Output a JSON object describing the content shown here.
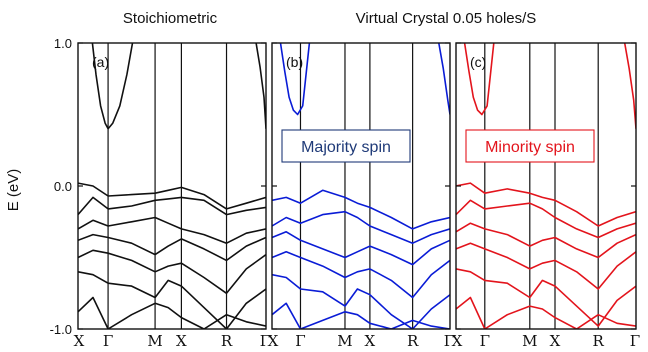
{
  "chart_data": {
    "type": "line",
    "ylabel": "E (eV)",
    "ylim": [
      -1.0,
      1.0
    ],
    "yticks": [
      "-1.0",
      "0.0",
      "1.0"
    ],
    "x_high_symmetry": [
      "X",
      "Γ",
      "M",
      "X",
      "R",
      "Γ"
    ],
    "titles": {
      "left": "Stoichiometric",
      "right": "Virtual Crystal 0.05 holes/S"
    },
    "panels": [
      {
        "label": "(a)",
        "color": "#111111",
        "annotation": "",
        "series": [
          {
            "x": [
              0.48,
              0.6,
              0.75,
              0.9,
              1.0,
              1.1,
              1.25,
              1.4,
              1.52
            ],
            "y": [
              1.0,
              0.78,
              0.56,
              0.44,
              0.4,
              0.44,
              0.56,
              0.78,
              1.0
            ]
          },
          {
            "x": [
              4.75,
              4.85,
              4.95,
              5.0
            ],
            "y": [
              1.0,
              0.83,
              0.62,
              0.4
            ]
          },
          {
            "x": [
              0,
              0.5,
              1.0,
              1.5,
              2.0,
              2.5,
              3.0,
              3.5,
              4.0,
              4.5,
              5.0
            ],
            "y": [
              0.02,
              0.0,
              -0.07,
              -0.06,
              -0.05,
              -0.03,
              -0.01,
              -0.06,
              -0.16,
              -0.12,
              -0.08
            ]
          },
          {
            "x": [
              0,
              0.5,
              1.0,
              1.5,
              2.0,
              2.5,
              3.0,
              3.5,
              4.0,
              4.5,
              5.0
            ],
            "y": [
              -0.2,
              -0.08,
              -0.16,
              -0.14,
              -0.1,
              -0.09,
              -0.08,
              -0.1,
              -0.2,
              -0.17,
              -0.15
            ]
          },
          {
            "x": [
              0,
              0.5,
              1.0,
              1.5,
              2.0,
              2.5,
              3.0,
              3.5,
              4.0,
              4.5,
              5.0
            ],
            "y": [
              -0.3,
              -0.24,
              -0.28,
              -0.25,
              -0.22,
              -0.26,
              -0.3,
              -0.34,
              -0.4,
              -0.33,
              -0.3
            ]
          },
          {
            "x": [
              0,
              0.5,
              1.0,
              1.5,
              2.0,
              2.5,
              3.0,
              3.5,
              4.0,
              4.5,
              5.0
            ],
            "y": [
              -0.38,
              -0.34,
              -0.36,
              -0.4,
              -0.48,
              -0.42,
              -0.37,
              -0.44,
              -0.52,
              -0.42,
              -0.36
            ]
          },
          {
            "x": [
              0,
              0.5,
              1.0,
              1.5,
              2.0,
              2.5,
              3.0,
              3.5,
              4.0,
              4.5,
              5.0
            ],
            "y": [
              -0.5,
              -0.45,
              -0.47,
              -0.52,
              -0.6,
              -0.56,
              -0.54,
              -0.64,
              -0.75,
              -0.58,
              -0.48
            ]
          },
          {
            "x": [
              0,
              0.5,
              1.0,
              1.5,
              2.0,
              2.5,
              3.0,
              3.5,
              4.0,
              4.5,
              5.0
            ],
            "y": [
              -0.6,
              -0.62,
              -0.68,
              -0.7,
              -0.78,
              -0.66,
              -0.7,
              -0.85,
              -1.0,
              -0.82,
              -0.72
            ]
          },
          {
            "x": [
              0,
              0.5,
              1.0,
              1.5,
              2.0,
              2.5,
              3.0,
              3.5,
              4.0,
              4.5,
              5.0
            ],
            "y": [
              -0.88,
              -0.78,
              -1.0,
              -0.9,
              -0.82,
              -0.85,
              -0.92,
              -1.0,
              -0.9,
              -0.95,
              -0.98
            ]
          }
        ]
      },
      {
        "label": "(b)",
        "color": "#0a1cd6",
        "annotation": "Majority spin",
        "annotation_color": "#1f3a78",
        "series": [
          {
            "x": [
              0.3,
              0.45,
              0.6,
              0.75,
              0.9,
              1.05,
              1.2
            ],
            "y": [
              1.0,
              0.8,
              0.62,
              0.53,
              0.5,
              0.56,
              1.0
            ]
          },
          {
            "x": [
              4.7,
              4.82,
              4.94,
              5.0
            ],
            "y": [
              1.0,
              0.82,
              0.6,
              0.5
            ]
          },
          {
            "x": [
              0,
              0.5,
              1.0,
              1.5,
              2.0,
              2.5,
              3.0,
              3.5,
              4.0,
              4.5,
              5.0
            ],
            "y": [
              -0.1,
              -0.08,
              -0.12,
              -0.03,
              -0.08,
              -0.12,
              -0.15,
              -0.22,
              -0.3,
              -0.25,
              -0.22
            ]
          },
          {
            "x": [
              0,
              0.5,
              1.0,
              1.5,
              2.0,
              2.5,
              3.0,
              3.5,
              4.0,
              4.5,
              5.0
            ],
            "y": [
              -0.28,
              -0.22,
              -0.26,
              -0.2,
              -0.18,
              -0.22,
              -0.28,
              -0.34,
              -0.4,
              -0.34,
              -0.3
            ]
          },
          {
            "x": [
              0,
              0.5,
              1.0,
              1.5,
              2.0,
              2.5,
              3.0,
              3.5,
              4.0,
              4.5,
              5.0
            ],
            "y": [
              -0.36,
              -0.32,
              -0.38,
              -0.44,
              -0.5,
              -0.46,
              -0.42,
              -0.48,
              -0.55,
              -0.44,
              -0.38
            ]
          },
          {
            "x": [
              0,
              0.5,
              1.0,
              1.5,
              2.0,
              2.5,
              3.0,
              3.5,
              4.0,
              4.5,
              5.0
            ],
            "y": [
              -0.5,
              -0.46,
              -0.5,
              -0.56,
              -0.64,
              -0.6,
              -0.58,
              -0.66,
              -0.78,
              -0.62,
              -0.52
            ]
          },
          {
            "x": [
              0,
              0.5,
              1.0,
              1.5,
              2.0,
              2.5,
              3.0,
              3.5,
              4.0,
              4.5,
              5.0
            ],
            "y": [
              -0.62,
              -0.64,
              -0.72,
              -0.74,
              -0.84,
              -0.72,
              -0.76,
              -0.9,
              -1.0,
              -0.86,
              -0.76
            ]
          },
          {
            "x": [
              0,
              0.5,
              1.0,
              1.5,
              2.0,
              2.5,
              3.0,
              3.5,
              4.0,
              4.5,
              5.0
            ],
            "y": [
              -0.9,
              -0.82,
              -1.0,
              -0.94,
              -0.88,
              -0.9,
              -0.96,
              -1.0,
              -0.94,
              -0.98,
              -1.0
            ]
          }
        ]
      },
      {
        "label": "(c)",
        "color": "#e3141c",
        "annotation": "Minority spin",
        "annotation_color": "#e3141c",
        "series": [
          {
            "x": [
              0.3,
              0.45,
              0.6,
              0.75,
              0.9,
              1.05,
              1.2
            ],
            "y": [
              1.0,
              0.8,
              0.62,
              0.53,
              0.5,
              0.56,
              1.0
            ]
          },
          {
            "x": [
              4.7,
              4.82,
              4.94,
              5.0
            ],
            "y": [
              1.0,
              0.82,
              0.6,
              0.4
            ]
          },
          {
            "x": [
              0,
              0.5,
              1.0,
              1.5,
              2.0,
              2.5,
              3.0,
              3.5,
              4.0,
              4.5,
              5.0
            ],
            "y": [
              0.0,
              0.02,
              -0.05,
              -0.02,
              -0.05,
              -0.08,
              -0.1,
              -0.18,
              -0.28,
              -0.22,
              -0.18
            ]
          },
          {
            "x": [
              0,
              0.5,
              1.0,
              1.5,
              2.0,
              2.5,
              3.0,
              3.5,
              4.0,
              4.5,
              5.0
            ],
            "y": [
              -0.2,
              -0.1,
              -0.16,
              -0.14,
              -0.12,
              -0.16,
              -0.22,
              -0.3,
              -0.36,
              -0.3,
              -0.26
            ]
          },
          {
            "x": [
              0,
              0.5,
              1.0,
              1.5,
              2.0,
              2.5,
              3.0,
              3.5,
              4.0,
              4.5,
              5.0
            ],
            "y": [
              -0.32,
              -0.26,
              -0.3,
              -0.34,
              -0.42,
              -0.38,
              -0.36,
              -0.44,
              -0.5,
              -0.4,
              -0.34
            ]
          },
          {
            "x": [
              0,
              0.5,
              1.0,
              1.5,
              2.0,
              2.5,
              3.0,
              3.5,
              4.0,
              4.5,
              5.0
            ],
            "y": [
              -0.44,
              -0.4,
              -0.44,
              -0.5,
              -0.58,
              -0.54,
              -0.52,
              -0.6,
              -0.72,
              -0.56,
              -0.46
            ]
          },
          {
            "x": [
              0,
              0.5,
              1.0,
              1.5,
              2.0,
              2.5,
              3.0,
              3.5,
              4.0,
              4.5,
              5.0
            ],
            "y": [
              -0.58,
              -0.6,
              -0.66,
              -0.68,
              -0.78,
              -0.66,
              -0.7,
              -0.84,
              -0.98,
              -0.8,
              -0.7
            ]
          },
          {
            "x": [
              0,
              0.5,
              1.0,
              1.5,
              2.0,
              2.5,
              3.0,
              3.5,
              4.0,
              4.5,
              5.0
            ],
            "y": [
              -0.86,
              -0.78,
              -1.0,
              -0.9,
              -0.84,
              -0.86,
              -0.92,
              -1.0,
              -0.9,
              -0.96,
              -0.98
            ]
          }
        ]
      }
    ]
  }
}
